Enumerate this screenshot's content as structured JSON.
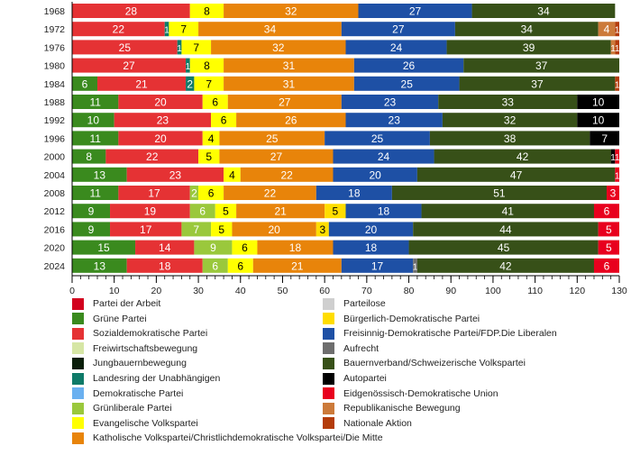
{
  "chart_data": {
    "type": "bar",
    "orientation": "horizontal",
    "stacked": true,
    "title": "",
    "xlabel": "",
    "ylabel": "",
    "xlim": [
      0,
      130
    ],
    "xticks": [
      0,
      10,
      20,
      30,
      40,
      50,
      60,
      70,
      80,
      90,
      100,
      110,
      120,
      130
    ],
    "minor_tick_step": 2,
    "grid": false,
    "legend_position": "bottom",
    "parties": {
      "PdA": {
        "name": "Partei der Arbeit",
        "color": "#D2001E"
      },
      "GP": {
        "name": "Grüne Partei",
        "color": "#3A8A1E"
      },
      "SP": {
        "name": "Sozialdemokratische Partei",
        "color": "#E53234"
      },
      "FW": {
        "name": "Freiwirtschaftsbewegung",
        "color": "#D6E6A5"
      },
      "JB": {
        "name": "Jungbauernbewegung",
        "color": "#0A1E0A"
      },
      "LdU": {
        "name": "Landesring der Unabhängigen",
        "color": "#0E7A68"
      },
      "DP": {
        "name": "Demokratische Partei",
        "color": "#6AB0F0"
      },
      "GLP": {
        "name": "Grünliberale Partei",
        "color": "#9AC83C"
      },
      "EVP": {
        "name": "Evangelische Volkspartei",
        "color": "#FFFF00"
      },
      "CVP": {
        "name": "Katholische Volkspartei/Christlichdemokratische Volkspartei/Die Mitte",
        "color": "#E8840A"
      },
      "PL": {
        "name": "Parteilose",
        "color": "#CFCFCF"
      },
      "BDP": {
        "name": "Bürgerlich-Demokratische Partei",
        "color": "#FFDD00"
      },
      "FDP": {
        "name": "Freisinnig-Demokratische Partei/FDP.Die Liberalen",
        "color": "#1E50A5"
      },
      "AUF": {
        "name": "Aufrecht",
        "color": "#6E6E6E"
      },
      "SVP": {
        "name": "Bauernverband/Schweizerische Volkspartei",
        "color": "#375018"
      },
      "AP": {
        "name": "Autopartei",
        "color": "#000000"
      },
      "EDU": {
        "name": "Eidgenössisch-Demokratische Union",
        "color": "#E8001E"
      },
      "REP": {
        "name": "Republikanische Bewegung",
        "color": "#CC7A3A"
      },
      "NA": {
        "name": "Nationale Aktion",
        "color": "#B43C0A"
      }
    },
    "legend_columns": [
      [
        "PdA",
        "GP",
        "SP",
        "FW",
        "JB",
        "LdU",
        "DP",
        "GLP",
        "EVP",
        "CVP"
      ],
      [
        "PL",
        "BDP",
        "FDP",
        "AUF",
        "SVP",
        "AP",
        "EDU",
        "REP",
        "NA"
      ]
    ],
    "categories": [
      "1968",
      "1972",
      "1976",
      "1980",
      "1984",
      "1988",
      "1992",
      "1996",
      "2000",
      "2004",
      "2008",
      "2012",
      "2016",
      "2020",
      "2024"
    ],
    "rows": [
      {
        "year": "1968",
        "segments": [
          {
            "party": "SP",
            "value": 28
          },
          {
            "party": "EVP",
            "value": 8
          },
          {
            "party": "CVP",
            "value": 32
          },
          {
            "party": "FDP",
            "value": 27
          },
          {
            "party": "SVP",
            "value": 34
          }
        ]
      },
      {
        "year": "1972",
        "segments": [
          {
            "party": "SP",
            "value": 22
          },
          {
            "party": "LdU",
            "value": 1
          },
          {
            "party": "EVP",
            "value": 7
          },
          {
            "party": "CVP",
            "value": 34
          },
          {
            "party": "FDP",
            "value": 27
          },
          {
            "party": "SVP",
            "value": 34
          },
          {
            "party": "REP",
            "value": 4
          },
          {
            "party": "NA",
            "value": 1
          }
        ]
      },
      {
        "year": "1976",
        "segments": [
          {
            "party": "SP",
            "value": 25
          },
          {
            "party": "LdU",
            "value": 1
          },
          {
            "party": "EVP",
            "value": 7
          },
          {
            "party": "CVP",
            "value": 32
          },
          {
            "party": "FDP",
            "value": 24
          },
          {
            "party": "SVP",
            "value": 39
          },
          {
            "party": "REP",
            "value": 1
          },
          {
            "party": "NA",
            "value": 1
          }
        ]
      },
      {
        "year": "1980",
        "segments": [
          {
            "party": "SP",
            "value": 27
          },
          {
            "party": "LdU",
            "value": 1
          },
          {
            "party": "EVP",
            "value": 8
          },
          {
            "party": "CVP",
            "value": 31
          },
          {
            "party": "FDP",
            "value": 26
          },
          {
            "party": "SVP",
            "value": 37
          }
        ]
      },
      {
        "year": "1984",
        "segments": [
          {
            "party": "GP",
            "value": 6
          },
          {
            "party": "SP",
            "value": 21
          },
          {
            "party": "LdU",
            "value": 2
          },
          {
            "party": "EVP",
            "value": 7
          },
          {
            "party": "CVP",
            "value": 31
          },
          {
            "party": "FDP",
            "value": 25
          },
          {
            "party": "SVP",
            "value": 37
          },
          {
            "party": "NA",
            "value": 1
          }
        ]
      },
      {
        "year": "1988",
        "segments": [
          {
            "party": "GP",
            "value": 11
          },
          {
            "party": "SP",
            "value": 20
          },
          {
            "party": "EVP",
            "value": 6
          },
          {
            "party": "CVP",
            "value": 27
          },
          {
            "party": "FDP",
            "value": 23
          },
          {
            "party": "SVP",
            "value": 33
          },
          {
            "party": "AP",
            "value": 10
          }
        ]
      },
      {
        "year": "1992",
        "segments": [
          {
            "party": "GP",
            "value": 10
          },
          {
            "party": "SP",
            "value": 23
          },
          {
            "party": "EVP",
            "value": 6
          },
          {
            "party": "CVP",
            "value": 26
          },
          {
            "party": "FDP",
            "value": 23
          },
          {
            "party": "SVP",
            "value": 32
          },
          {
            "party": "AP",
            "value": 10
          }
        ]
      },
      {
        "year": "1996",
        "segments": [
          {
            "party": "GP",
            "value": 11
          },
          {
            "party": "SP",
            "value": 20
          },
          {
            "party": "EVP",
            "value": 4
          },
          {
            "party": "CVP",
            "value": 25
          },
          {
            "party": "FDP",
            "value": 25
          },
          {
            "party": "SVP",
            "value": 38
          },
          {
            "party": "AP",
            "value": 7
          }
        ]
      },
      {
        "year": "2000",
        "segments": [
          {
            "party": "GP",
            "value": 8
          },
          {
            "party": "SP",
            "value": 22
          },
          {
            "party": "EVP",
            "value": 5
          },
          {
            "party": "CVP",
            "value": 27
          },
          {
            "party": "FDP",
            "value": 24
          },
          {
            "party": "SVP",
            "value": 42
          },
          {
            "party": "AP",
            "value": 1
          },
          {
            "party": "EDU",
            "value": 1
          }
        ]
      },
      {
        "year": "2004",
        "segments": [
          {
            "party": "GP",
            "value": 13
          },
          {
            "party": "SP",
            "value": 23
          },
          {
            "party": "EVP",
            "value": 4
          },
          {
            "party": "CVP",
            "value": 22
          },
          {
            "party": "FDP",
            "value": 20
          },
          {
            "party": "SVP",
            "value": 47
          },
          {
            "party": "EDU",
            "value": 1
          }
        ]
      },
      {
        "year": "2008",
        "segments": [
          {
            "party": "GP",
            "value": 11
          },
          {
            "party": "SP",
            "value": 17
          },
          {
            "party": "GLP",
            "value": 2
          },
          {
            "party": "EVP",
            "value": 6
          },
          {
            "party": "CVP",
            "value": 22
          },
          {
            "party": "FDP",
            "value": 18
          },
          {
            "party": "SVP",
            "value": 51
          },
          {
            "party": "EDU",
            "value": 3
          }
        ]
      },
      {
        "year": "2012",
        "segments": [
          {
            "party": "GP",
            "value": 9
          },
          {
            "party": "SP",
            "value": 19
          },
          {
            "party": "GLP",
            "value": 6
          },
          {
            "party": "EVP",
            "value": 5
          },
          {
            "party": "CVP",
            "value": 21
          },
          {
            "party": "BDP",
            "value": 5
          },
          {
            "party": "FDP",
            "value": 18
          },
          {
            "party": "SVP",
            "value": 41
          },
          {
            "party": "EDU",
            "value": 6
          }
        ]
      },
      {
        "year": "2016",
        "segments": [
          {
            "party": "GP",
            "value": 9
          },
          {
            "party": "SP",
            "value": 17
          },
          {
            "party": "GLP",
            "value": 7
          },
          {
            "party": "EVP",
            "value": 5
          },
          {
            "party": "CVP",
            "value": 20
          },
          {
            "party": "BDP",
            "value": 3
          },
          {
            "party": "FDP",
            "value": 20
          },
          {
            "party": "SVP",
            "value": 44
          },
          {
            "party": "EDU",
            "value": 5
          }
        ]
      },
      {
        "year": "2020",
        "segments": [
          {
            "party": "GP",
            "value": 15
          },
          {
            "party": "SP",
            "value": 14
          },
          {
            "party": "GLP",
            "value": 9
          },
          {
            "party": "EVP",
            "value": 6
          },
          {
            "party": "CVP",
            "value": 18
          },
          {
            "party": "FDP",
            "value": 18
          },
          {
            "party": "SVP",
            "value": 45
          },
          {
            "party": "EDU",
            "value": 5
          }
        ]
      },
      {
        "year": "2024",
        "segments": [
          {
            "party": "GP",
            "value": 13
          },
          {
            "party": "SP",
            "value": 18
          },
          {
            "party": "GLP",
            "value": 6
          },
          {
            "party": "EVP",
            "value": 6
          },
          {
            "party": "CVP",
            "value": 21
          },
          {
            "party": "FDP",
            "value": 17
          },
          {
            "party": "AUF",
            "value": 1
          },
          {
            "party": "SVP",
            "value": 42
          },
          {
            "party": "EDU",
            "value": 6
          }
        ]
      }
    ],
    "dark_label_parties": [
      "EVP",
      "BDP"
    ]
  }
}
